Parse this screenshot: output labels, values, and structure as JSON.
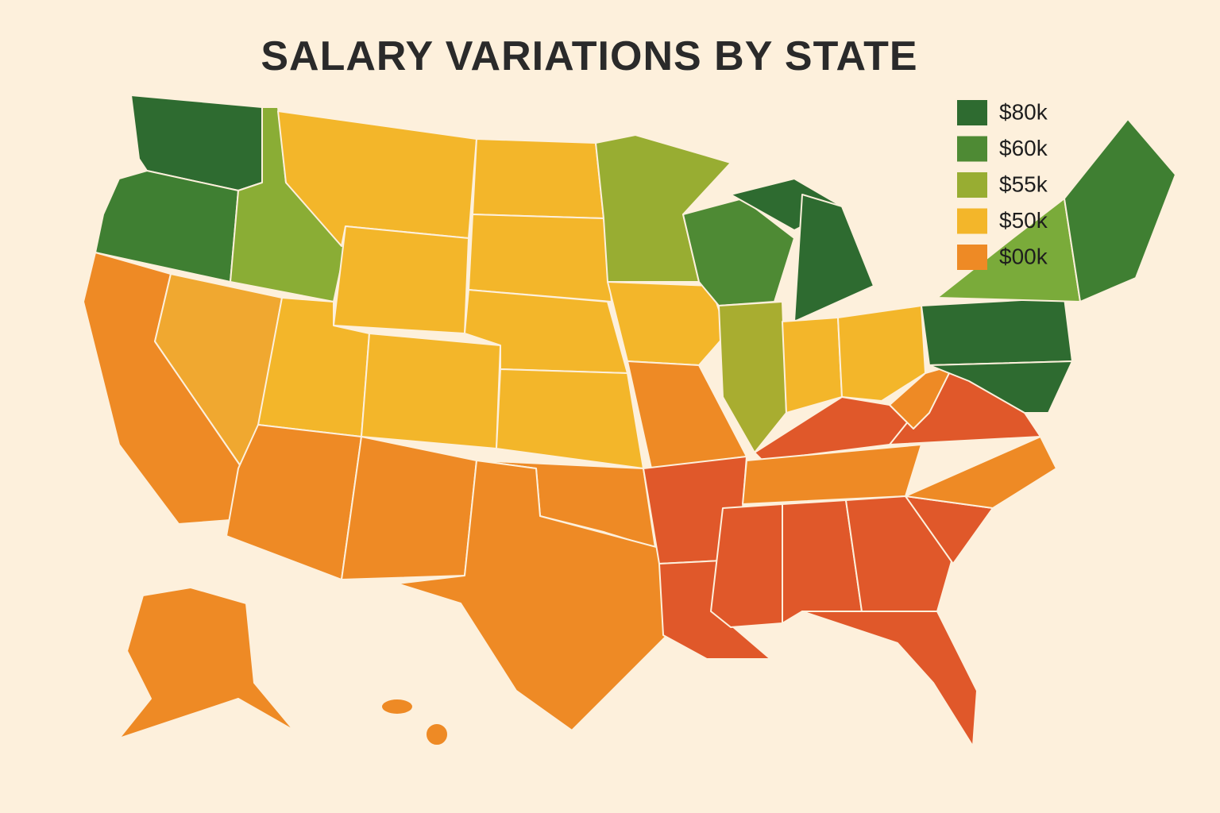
{
  "title": "SALARY VARIATIONS BY STATE",
  "legend": [
    {
      "label": "$80k",
      "color": "#2e6b30"
    },
    {
      "label": "$60k",
      "color": "#4e8a34"
    },
    {
      "label": "$55k",
      "color": "#98ad32"
    },
    {
      "label": "$50k",
      "color": "#f3b62a"
    },
    {
      "label": "$00k",
      "color": "#ee8a25"
    }
  ]
}
